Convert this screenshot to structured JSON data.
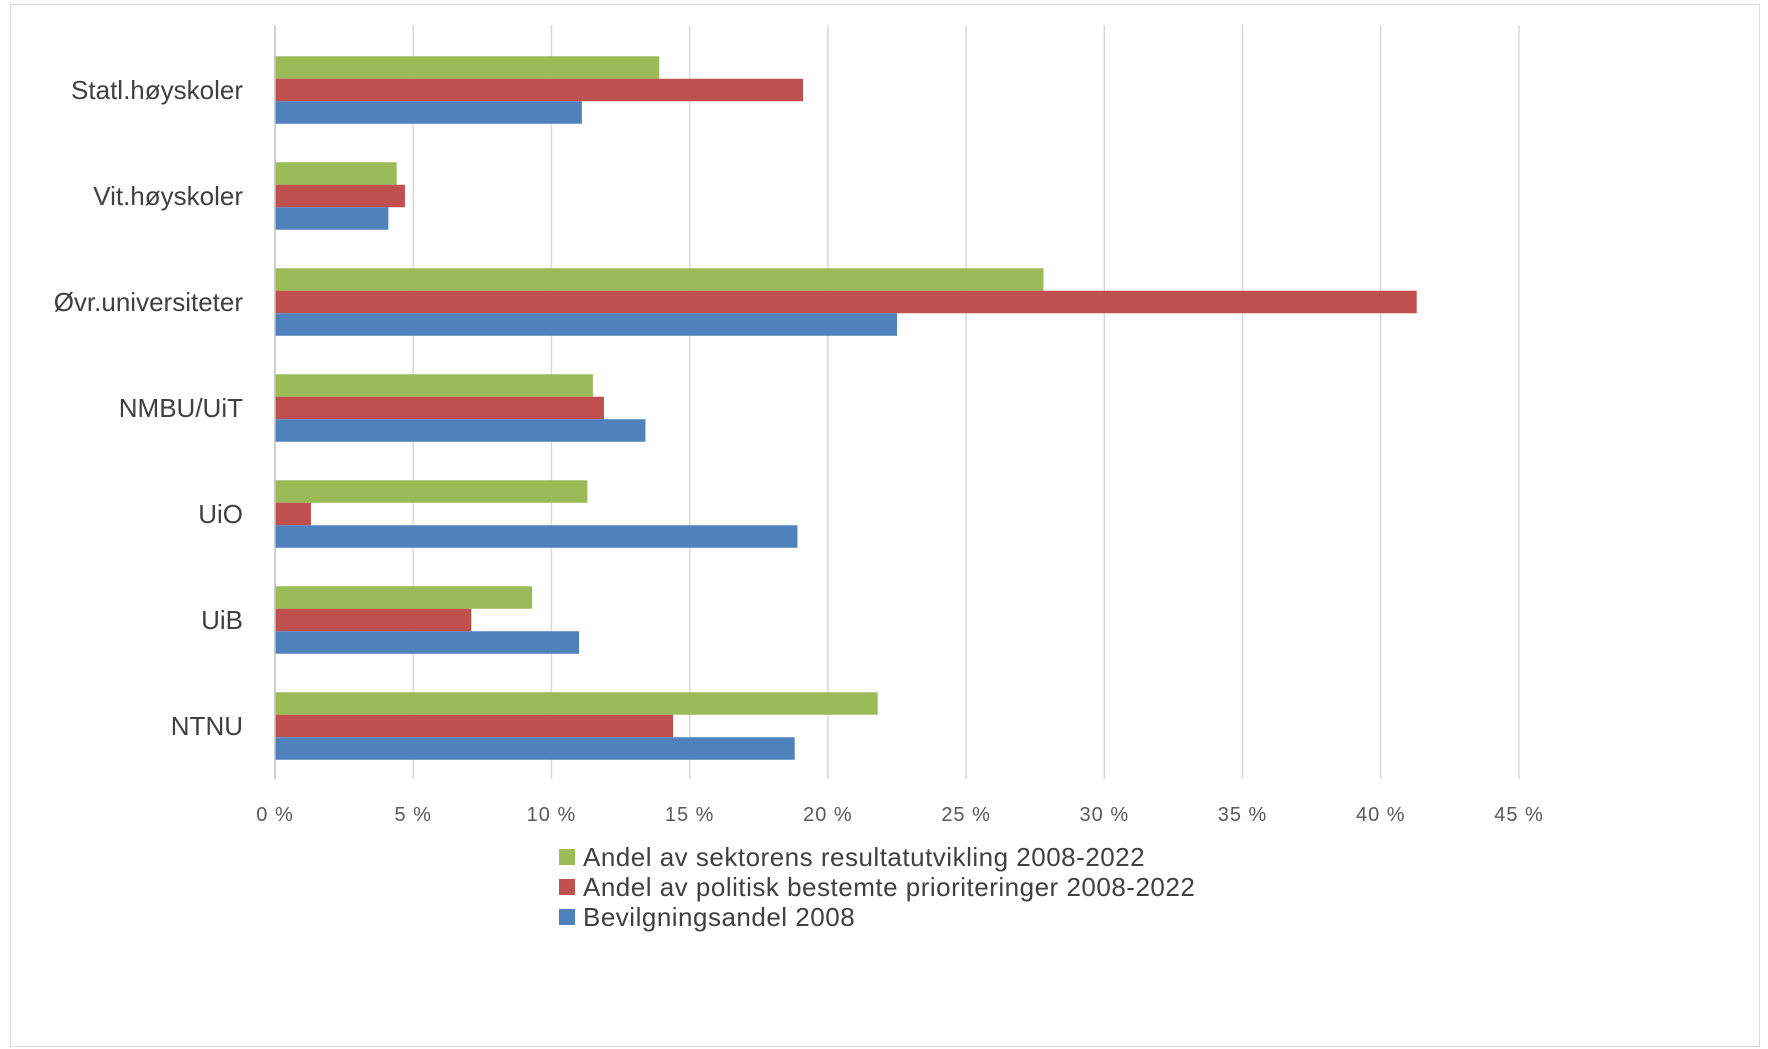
{
  "chart_data": {
    "type": "bar",
    "orientation": "horizontal",
    "categories": [
      "Statl.høyskoler",
      "Vit.høyskoler",
      "Øvr.universiteter",
      "NMBU/UiT",
      "UiO",
      "UiB",
      "NTNU"
    ],
    "series": [
      {
        "name": "Andel av sektorens resultatutvikling 2008-2022",
        "color": "#9bbb59",
        "values": [
          13.9,
          4.4,
          27.8,
          11.5,
          11.3,
          9.3,
          21.8
        ]
      },
      {
        "name": "Andel av politisk bestemte prioriteringer 2008-2022",
        "color": "#c0504d",
        "values": [
          19.1,
          4.7,
          41.3,
          11.9,
          1.3,
          7.1,
          14.4
        ]
      },
      {
        "name": "Bevilgningsandel 2008",
        "color": "#4f81bd",
        "values": [
          11.1,
          4.1,
          22.5,
          13.4,
          18.9,
          11.0,
          18.8
        ]
      }
    ],
    "xlim": [
      0,
      45
    ],
    "x_ticks": [
      0,
      5,
      10,
      15,
      20,
      25,
      30,
      35,
      40,
      45
    ],
    "x_tick_labels": [
      "0 %",
      "5 %",
      "10 %",
      "15 %",
      "20 %",
      "25 %",
      "30 %",
      "35 %",
      "40 %",
      "45 %"
    ],
    "grid": "vertical",
    "legend_position": "bottom",
    "title": "",
    "xlabel": "",
    "ylabel": ""
  }
}
